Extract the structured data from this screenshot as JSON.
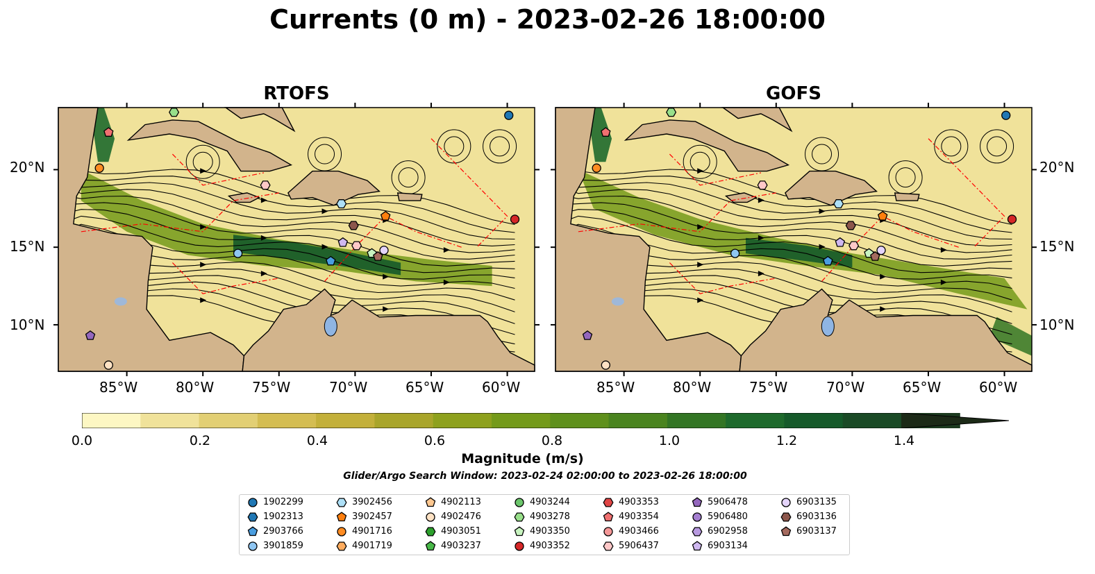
{
  "title": "Currents (0 m) - 2023-02-26 18:00:00",
  "panels": [
    {
      "title": "RTOFS"
    },
    {
      "title": "GOFS"
    }
  ],
  "axes": {
    "lat_labels": [
      "20°N",
      "15°N",
      "10°N"
    ],
    "lon_labels": [
      "85°W",
      "80°W",
      "75°W",
      "70°W",
      "65°W",
      "60°W"
    ],
    "lat_range": [
      7,
      24
    ],
    "lon_range": [
      -89.5,
      -58.2
    ]
  },
  "colorbar": {
    "label": "Magnitude (m/s)",
    "ticks": [
      "0.0",
      "0.2",
      "0.4",
      "0.6",
      "0.8",
      "1.0",
      "1.2",
      "1.4"
    ],
    "range": [
      0,
      1.5
    ],
    "extend": "max",
    "colors": [
      "#fdf7c3",
      "#f0e29a",
      "#e2cf74",
      "#d4bd52",
      "#c3b03a",
      "#a9a52a",
      "#8ea11d",
      "#749a1a",
      "#5f901c",
      "#4a841f",
      "#337524",
      "#1e6a2c",
      "#155a2a",
      "#1a4a26",
      "#1c3a1f",
      "#1c2a17"
    ]
  },
  "search_window": "Glider/Argo Search Window: 2023-02-24 02:00:00 to 2023-02-26 18:00:00",
  "legend": [
    {
      "id": "1902299",
      "shape": "circle",
      "color": "#1f77b4"
    },
    {
      "id": "1902313",
      "shape": "hexagon",
      "color": "#1f77b4"
    },
    {
      "id": "2903766",
      "shape": "pentagon",
      "color": "#4a9ee0"
    },
    {
      "id": "3901859",
      "shape": "circle",
      "color": "#8fc6f2"
    },
    {
      "id": "3902456",
      "shape": "hexagon",
      "color": "#aee0f7"
    },
    {
      "id": "3902457",
      "shape": "pentagon",
      "color": "#ff7f0e"
    },
    {
      "id": "4901716",
      "shape": "circle",
      "color": "#ff8c22"
    },
    {
      "id": "4901719",
      "shape": "hexagon",
      "color": "#ffac5e"
    },
    {
      "id": "4902113",
      "shape": "pentagon",
      "color": "#ffc890"
    },
    {
      "id": "4902476",
      "shape": "circle",
      "color": "#ffe2c4"
    },
    {
      "id": "4903051",
      "shape": "hexagon",
      "color": "#2ca02c"
    },
    {
      "id": "4903237",
      "shape": "pentagon",
      "color": "#48b848"
    },
    {
      "id": "4903244",
      "shape": "circle",
      "color": "#6cc66c"
    },
    {
      "id": "4903278",
      "shape": "hexagon",
      "color": "#98df8a"
    },
    {
      "id": "4903350",
      "shape": "pentagon",
      "color": "#c8f4c0"
    },
    {
      "id": "4903352",
      "shape": "circle",
      "color": "#d62728"
    },
    {
      "id": "4903353",
      "shape": "hexagon",
      "color": "#e04545"
    },
    {
      "id": "4903354",
      "shape": "pentagon",
      "color": "#f07070"
    },
    {
      "id": "4903466",
      "shape": "circle",
      "color": "#f59898"
    },
    {
      "id": "5906437",
      "shape": "hexagon",
      "color": "#ffc8c8"
    },
    {
      "id": "5906478",
      "shape": "pentagon",
      "color": "#9467bd"
    },
    {
      "id": "5906480",
      "shape": "circle",
      "color": "#a47ed0"
    },
    {
      "id": "6902958",
      "shape": "hexagon",
      "color": "#b89ae0"
    },
    {
      "id": "6903134",
      "shape": "pentagon",
      "color": "#cfb8f0"
    },
    {
      "id": "6903135",
      "shape": "circle",
      "color": "#e4d4fb"
    },
    {
      "id": "6903136",
      "shape": "hexagon",
      "color": "#8c564b"
    },
    {
      "id": "6903137",
      "shape": "pentagon",
      "color": "#a46a5e"
    }
  ],
  "markers": [
    {
      "id": "1902299",
      "lon": -59.9,
      "lat": 23.5
    },
    {
      "id": "4903278",
      "lon": -81.9,
      "lat": 23.7
    },
    {
      "id": "4903354",
      "lon": -86.2,
      "lat": 22.4
    },
    {
      "id": "4901716",
      "lon": -86.8,
      "lat": 20.1
    },
    {
      "id": "5906437",
      "lon": -75.9,
      "lat": 19.0
    },
    {
      "id": "3902456",
      "lon": -70.9,
      "lat": 17.8
    },
    {
      "id": "3902457",
      "lon": -68.0,
      "lat": 17.0
    },
    {
      "id": "6903136",
      "lon": -70.1,
      "lat": 16.4
    },
    {
      "id": "4903352",
      "lon": -59.5,
      "lat": 16.8
    },
    {
      "id": "3901859",
      "lon": -77.7,
      "lat": 14.6
    },
    {
      "id": "6903134",
      "lon": -70.8,
      "lat": 15.3
    },
    {
      "id": "5906437",
      "lon": -69.9,
      "lat": 15.1
    },
    {
      "id": "4903350",
      "lon": -68.9,
      "lat": 14.6
    },
    {
      "id": "6903137",
      "lon": -68.5,
      "lat": 14.4
    },
    {
      "id": "6903135",
      "lon": -68.1,
      "lat": 14.8
    },
    {
      "id": "2903766",
      "lon": -71.6,
      "lat": 14.1
    },
    {
      "id": "5906478",
      "lon": -87.4,
      "lat": 9.3
    },
    {
      "id": "4902476",
      "lon": -86.2,
      "lat": 7.4
    }
  ]
}
